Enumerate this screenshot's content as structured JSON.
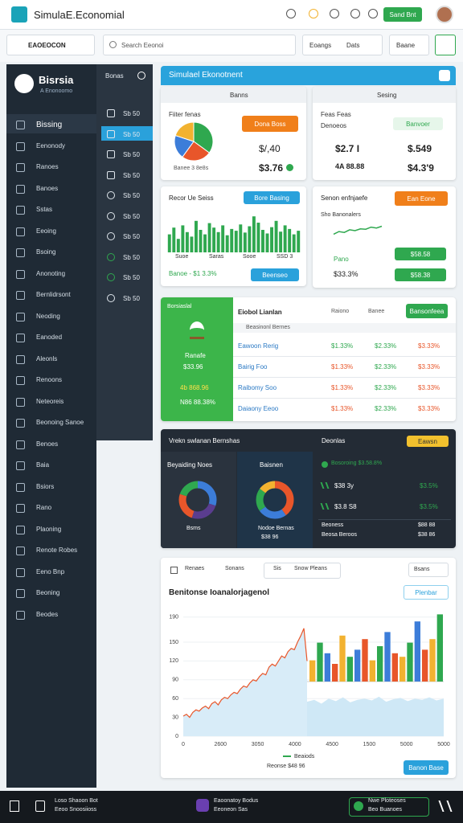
{
  "header": {
    "title": "SimulaE.Economial",
    "button": "Sand Bnt"
  },
  "toolbar": {
    "select": "EAOEOCON",
    "search": "Search Eeonoi",
    "tabs": [
      "Eoangs",
      "Dats"
    ],
    "filter": "Baane"
  },
  "sidebar": {
    "brand": "Bisrsia",
    "subtitle": "A Enonoomo",
    "items": [
      "Bissing",
      "Eenonody",
      "Ranoes",
      "Banoes",
      "Sstas",
      "Eeoing",
      "Bsoing",
      "Anonoting",
      "Bernlidrsont",
      "Neoding",
      "Eanoded",
      "Aleonls",
      "Renoons",
      "Neteoreis",
      "Beonoing Sanoe",
      "Benoes",
      "Baia",
      "Bsiors",
      "Rano",
      "Plaoning",
      "Renote Robes",
      "Eeno Bnp",
      "Beoning",
      "Beodes"
    ]
  },
  "subnav": {
    "title": "Bonas",
    "items": [
      "Sb 50",
      "Sb 50",
      "Sb 50",
      "Sb 50",
      "Sb 50",
      "Sb 50",
      "Sb 50",
      "Sb 50",
      "Sb 50",
      "Sb 50"
    ]
  },
  "banner": {
    "title": "Simulael Ekonotnent"
  },
  "card_pie": {
    "header": "Banns",
    "label": "Fiiter fenas",
    "button": "Dona Boss",
    "value": "$/,40",
    "value2": "$3.76",
    "foot": "Banee 3 8e8s",
    "slices": [
      {
        "value": 35,
        "color": "#2fa84f"
      },
      {
        "value": 25,
        "color": "#e8562a"
      },
      {
        "value": 20,
        "color": "#3c7dd9"
      },
      {
        "value": 20,
        "color": "#f2b230"
      }
    ]
  },
  "card_values": {
    "header": "Sesing",
    "label": "Feas Feas",
    "label2": "Denoeos",
    "button": "Banvoer",
    "values": [
      "$2.7 I",
      "$.549",
      "4A 88.88",
      "$4.3'9"
    ]
  },
  "card_bars": {
    "title": "Recor Ue Seiss",
    "button": "Bore Basing",
    "ylim": [
      0,
      100
    ],
    "values": [
      40,
      55,
      30,
      60,
      45,
      35,
      70,
      50,
      40,
      65,
      55,
      45,
      60,
      38,
      52,
      48,
      62,
      44,
      58,
      80,
      66,
      50,
      42,
      56,
      70,
      46,
      60,
      52,
      40,
      48
    ],
    "labels": [
      "Suoe",
      "Saras",
      "Sooe",
      "SSD 3"
    ],
    "foot": "Banoe - $1 3.3%",
    "button2": "Beenseo"
  },
  "card_trend": {
    "title": "Senon enfnjaefe",
    "button": "Ean Eone",
    "label": "Sho Banonalers",
    "ylim": [
      0,
      100
    ],
    "values": [
      30,
      45,
      40,
      55,
      50,
      60,
      58,
      70,
      65,
      75
    ],
    "label2": "Pano",
    "value": "$33.3%",
    "buttons": [
      "$58.58",
      "$58.38"
    ]
  },
  "table_card": {
    "side": {
      "title": "Borsiaslal",
      "label": "Ranafe",
      "value": "$33.96",
      "v2": "4b 868.96",
      "v3": "N86 88.38%"
    },
    "title": "Eiobol Lianlan",
    "columns": [
      "Raiono",
      "Banee"
    ],
    "button": "Bansonfeea",
    "subtitle": "Beasinonl Bernes",
    "rows": [
      [
        "Eawoon Rerig",
        "$1.33%",
        "$2.33%",
        "$3.33%"
      ],
      [
        "Bairig Foo",
        "$1.33%",
        "$2.33%",
        "$3.33%"
      ],
      [
        "Raibomy Soo",
        "$1.33%",
        "$2.33%",
        "$3.33%"
      ],
      [
        "Daiaony Eeoo",
        "$1.33%",
        "$2.33%",
        "$3.33%"
      ]
    ]
  },
  "dark_card": {
    "title": "Vrekn swlanan Bernshas",
    "donuts": [
      {
        "label": "Beyaiding Noes",
        "foot": "Bsms",
        "segments": [
          {
            "value": 30,
            "color": "#3c7dd9"
          },
          {
            "value": 25,
            "color": "#5a3d8f"
          },
          {
            "value": 25,
            "color": "#e8562a"
          },
          {
            "value": 20,
            "color": "#2fa84f"
          }
        ]
      },
      {
        "label": "Baisnen",
        "foot": "Nodoe Bernas",
        "foot2": "$38 96",
        "segments": [
          {
            "value": 40,
            "color": "#e8562a"
          },
          {
            "value": 25,
            "color": "#3c7dd9"
          },
          {
            "value": 20,
            "color": "#2fa84f"
          },
          {
            "value": 15,
            "color": "#f2b230"
          }
        ]
      }
    ],
    "panel": {
      "title": "Deonlas",
      "button": "Eawsn",
      "headline": "Bosoroing $3.58.8%",
      "rows": [
        [
          "$38 3y",
          "$3.5%"
        ],
        [
          "$3.8 S8",
          "$3.5%"
        ]
      ],
      "foot": [
        "Beoness",
        "$88 88"
      ],
      "foot2": [
        "Beosa Beroos",
        "$38 86"
      ]
    }
  },
  "chart_card": {
    "tabs": [
      "Renaes",
      "Sonans",
      "Sis",
      "Snow Pleans"
    ],
    "select": "Bsans",
    "title": "Benitonse Ioanalorjagenol",
    "button": "Plenbar",
    "ylim": [
      0,
      200
    ],
    "yticks": [
      0,
      30,
      60,
      90,
      120,
      150,
      190
    ],
    "x_labels": [
      "0",
      "2600",
      "3050",
      "4000",
      "4500",
      "1500",
      "5000",
      "5000"
    ],
    "line": [
      32,
      35,
      30,
      38,
      42,
      40,
      45,
      48,
      44,
      52,
      55,
      50,
      58,
      62,
      60,
      66,
      70,
      68,
      75,
      80,
      78,
      85,
      90,
      88,
      95,
      100,
      98,
      110,
      115,
      112,
      120,
      128,
      125,
      135,
      140,
      138,
      150,
      160,
      172,
      120
    ],
    "area": [
      55,
      58,
      52,
      60,
      56,
      62,
      54,
      58,
      60,
      57,
      63,
      55,
      59,
      61,
      56,
      60,
      58,
      62,
      57,
      60
    ],
    "bar_ylim": [
      0,
      100
    ],
    "bars": [
      30,
      55,
      40,
      25,
      65,
      35,
      45,
      60,
      30,
      50,
      70,
      40,
      35,
      55,
      85,
      45,
      60,
      95
    ],
    "colors": [
      "#f2b230",
      "#2fa84f",
      "#3c7dd9",
      "#e8562a"
    ],
    "legend": "Beaiods",
    "foot": "Reonse $48 96",
    "button2": "Banon Base"
  },
  "bottom_bar": [
    {
      "title": "Loso Shaoon Bot",
      "sub": "Eeoo Snoosiioss"
    },
    {
      "title": "Eaoonatoy Bodus",
      "sub": "Eeoneon Sas"
    },
    {
      "title": "Nwe Ploteoses",
      "sub": "Beo Buanoes"
    }
  ]
}
